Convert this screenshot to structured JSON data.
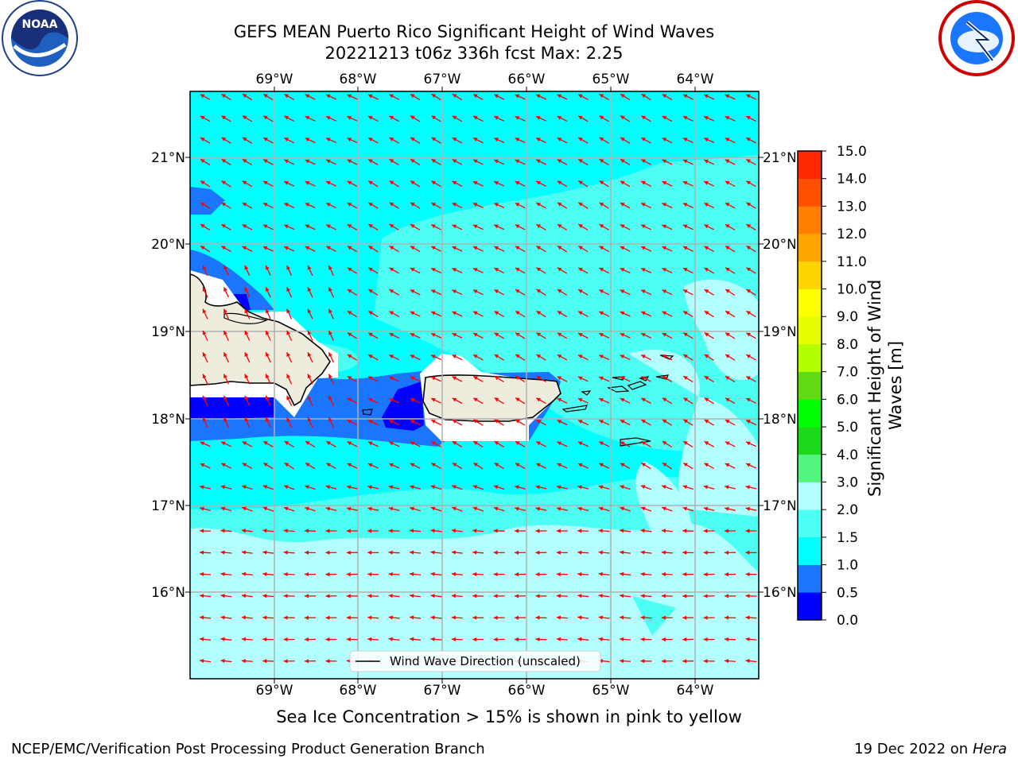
{
  "title_line1": "GEFS MEAN Puerto Rico Significant Height of Wind Waves",
  "title_line2": "20221213 t06z 336h fcst   Max: 2.25",
  "lon_labels": [
    "69°W",
    "68°W",
    "67°W",
    "66°W",
    "65°W",
    "64°W"
  ],
  "lat_labels": [
    "21°N",
    "20°N",
    "19°N",
    "18°N",
    "17°N",
    "16°N"
  ],
  "legend_label": "Wind Wave Direction (unscaled)",
  "colorbar": {
    "label": "Significant Height of Wind Waves [m]",
    "ticks": [
      "0.0",
      "0.5",
      "1.0",
      "1.5",
      "2.0",
      "3.0",
      "4.0",
      "5.0",
      "6.0",
      "7.0",
      "8.0",
      "9.0",
      "10.0",
      "11.0",
      "12.0",
      "13.0",
      "14.0",
      "15.0"
    ],
    "colors": [
      "#0000ff",
      "#1a75ff",
      "#00ffff",
      "#4dfff2",
      "#b3ffff",
      "#54f57e",
      "#1bd81b",
      "#00ff00",
      "#62d915",
      "#b3ff00",
      "#e6ff00",
      "#ffff00",
      "#ffd500",
      "#ffa500",
      "#ff8000",
      "#ff5000",
      "#ff2800"
    ]
  },
  "sea_ice_note": "Sea Ice Concentration > 15% is shown in pink to yellow",
  "footer_left": "NCEP/EMC/Verification Post Processing Product Generation Branch",
  "footer_date": "19 Dec 2022 on",
  "footer_host": "Hera",
  "noaa_logo_text": "NOAA",
  "colors": {
    "land": "#eeecdc",
    "arrow": "#ff0000",
    "grid": "#b0b0b0"
  }
}
